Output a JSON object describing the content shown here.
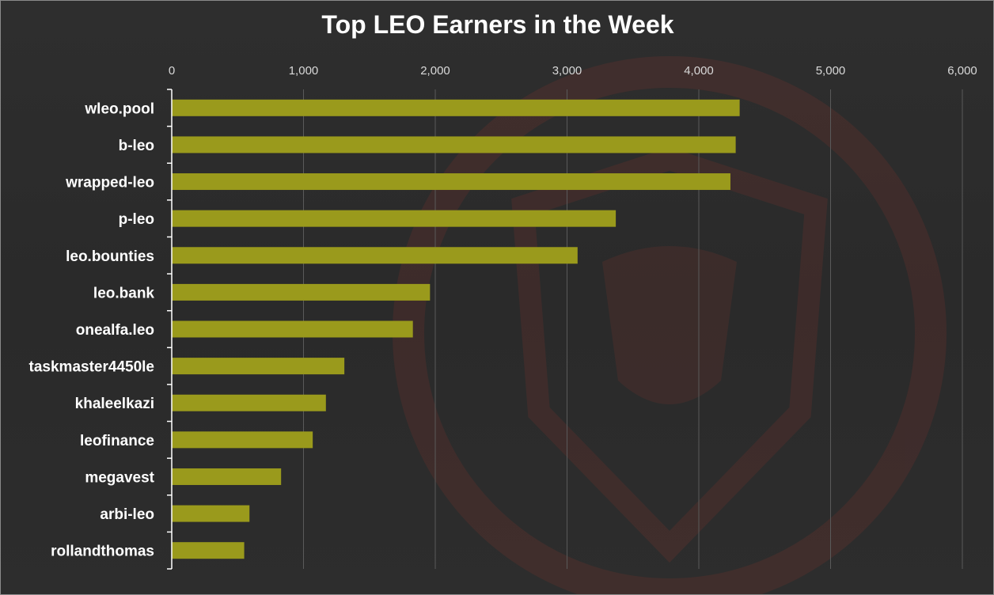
{
  "chart_data": {
    "type": "bar",
    "orientation": "horizontal",
    "title": "Top LEO Earners in the Week",
    "xlabel": "",
    "ylabel": "",
    "xlim": [
      0,
      6000
    ],
    "x_ticks": [
      "0",
      "1,000",
      "2,000",
      "3,000",
      "4,000",
      "5,000",
      "6,000"
    ],
    "x_axis_position": "top",
    "grid": true,
    "categories": [
      "wleo.pool",
      "b-leo",
      "wrapped-leo",
      "p-leo",
      "leo.bounties",
      "leo.bank",
      "onealfa.leo",
      "taskmaster4450le",
      "khaleelkazi",
      "leofinance",
      "megavest",
      "arbi-leo",
      "rollandthomas"
    ],
    "values": [
      4310,
      4280,
      4240,
      3370,
      3080,
      1960,
      1830,
      1310,
      1170,
      1070,
      830,
      590,
      550
    ],
    "colors": {
      "bar": "#9a9a1c",
      "background": "#2b2b2b",
      "text": "#ffffff",
      "grid": "#5a5a5a"
    }
  }
}
